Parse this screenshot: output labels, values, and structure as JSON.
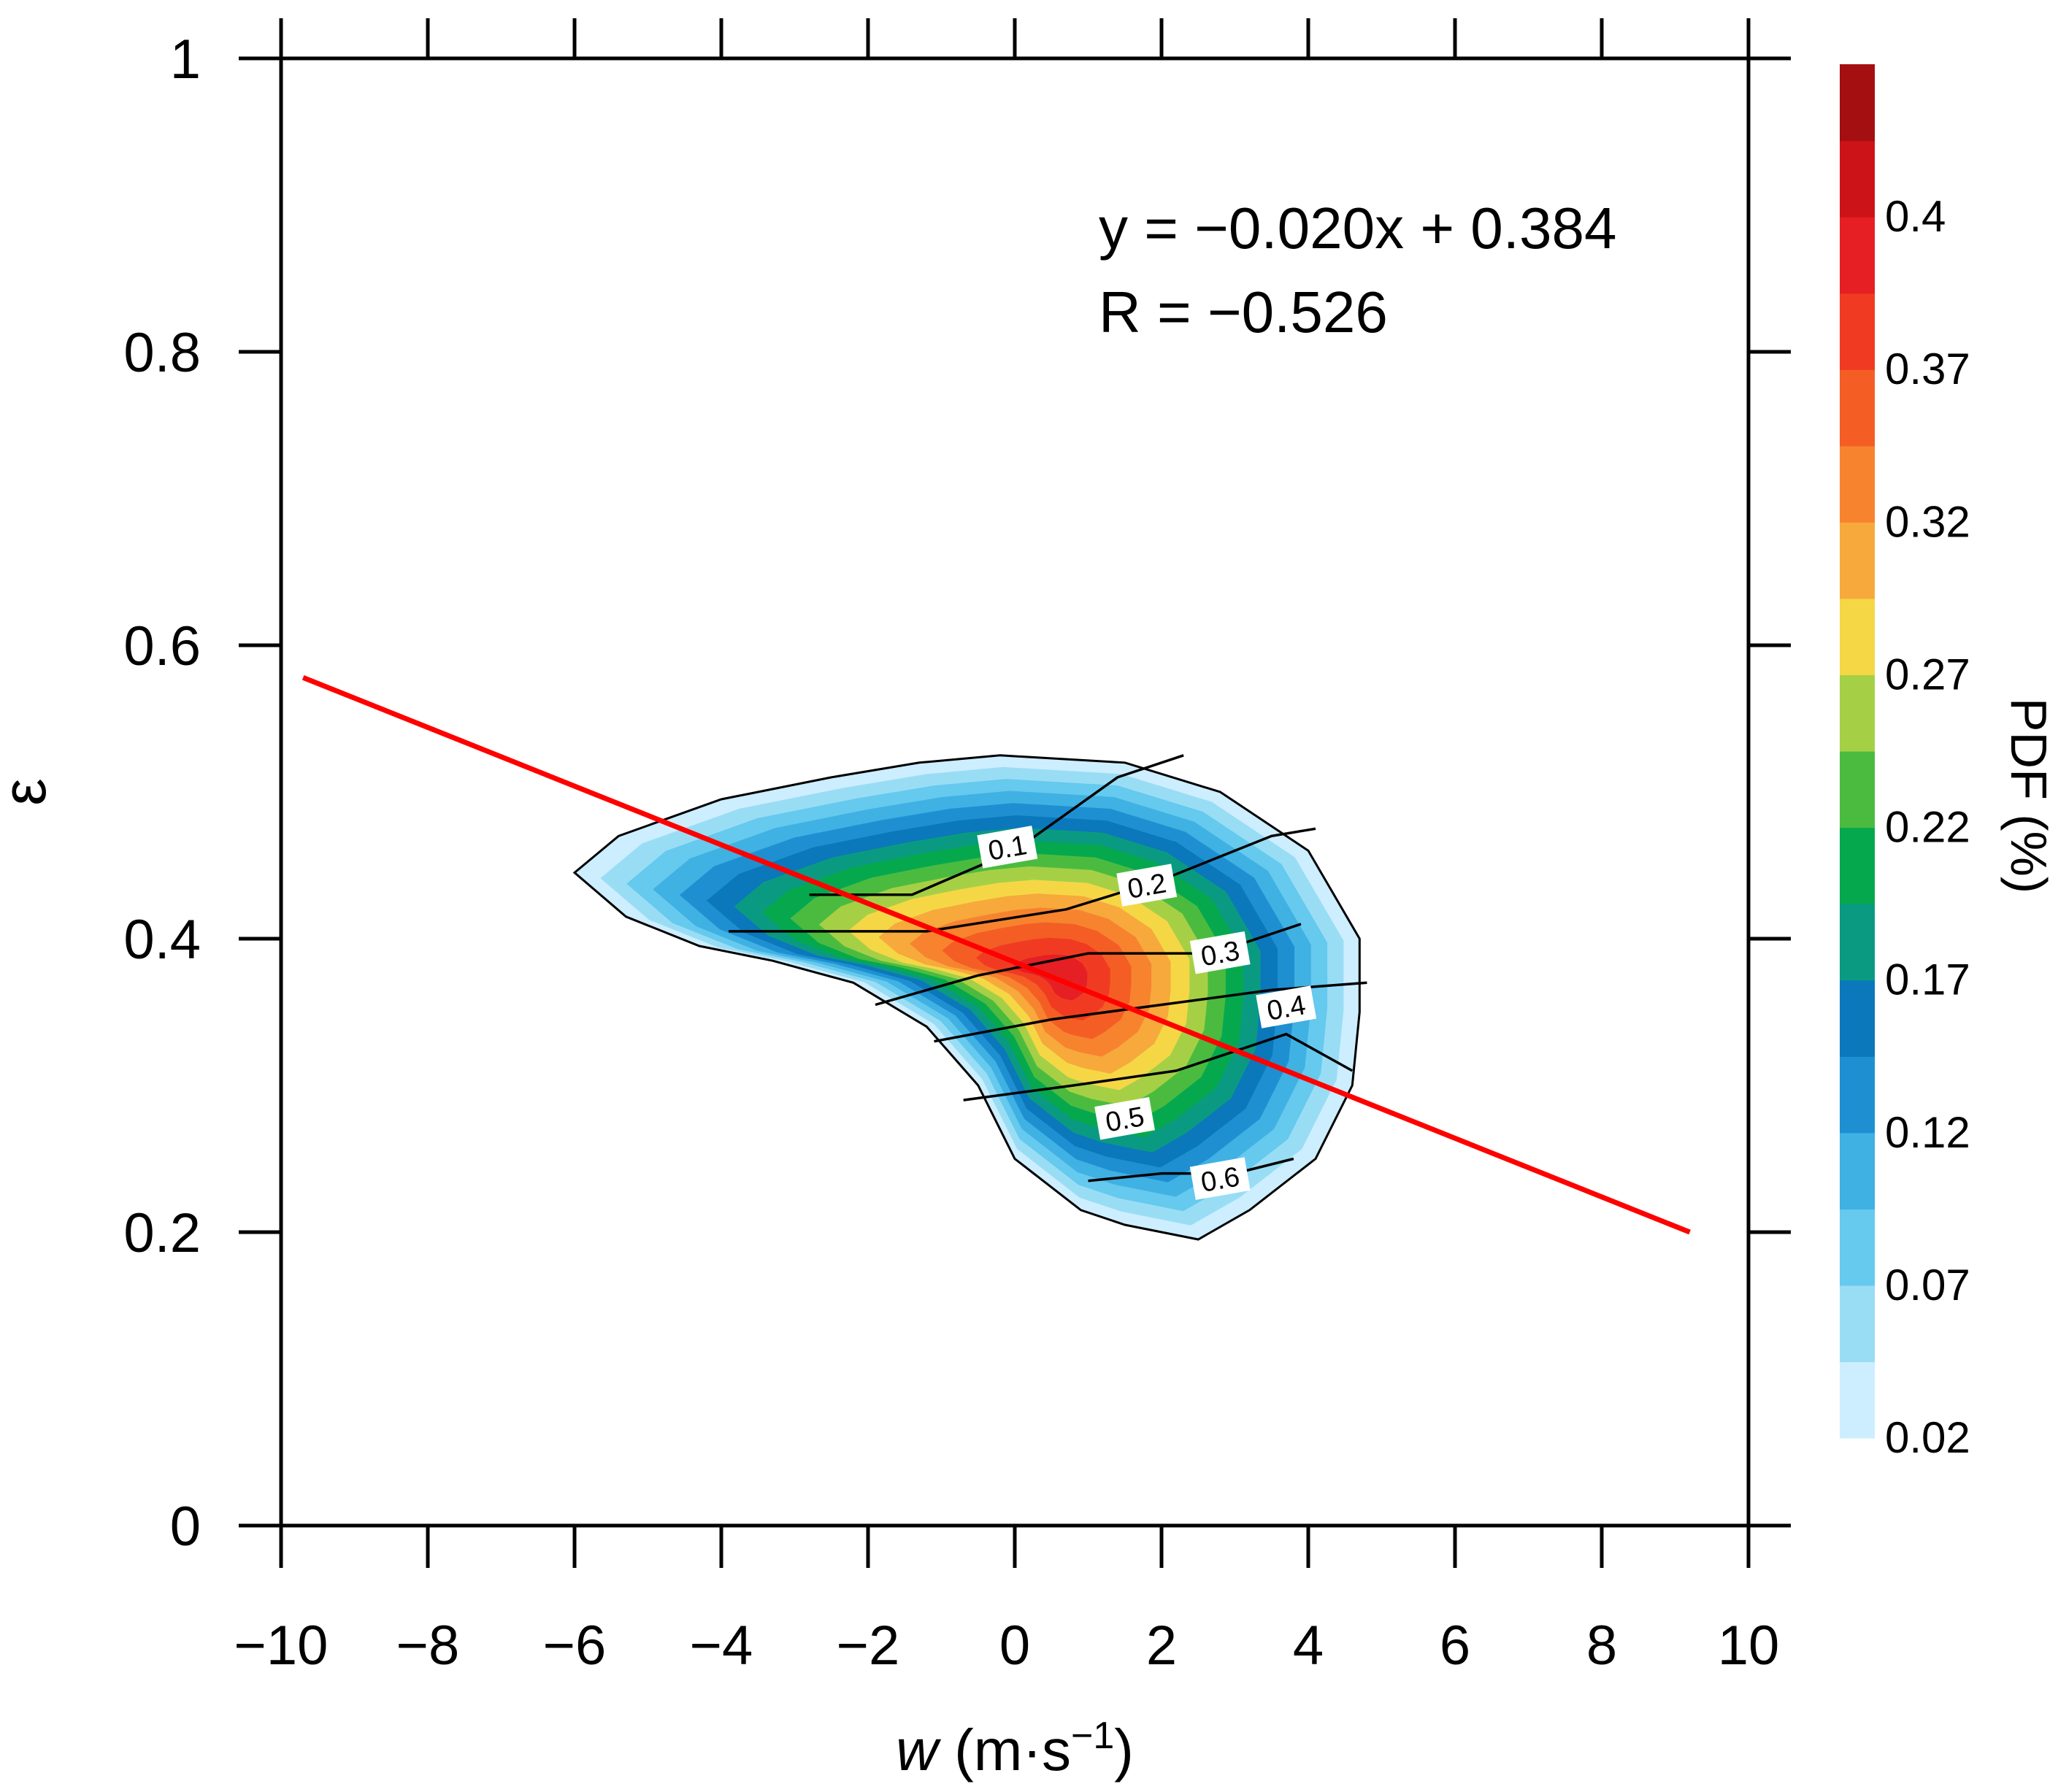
{
  "chart_data": {
    "type": "contour",
    "xlabel_italic": "w",
    "xlabel_rest": " (m·s",
    "xlabel_sup": "−1",
    "xlabel_close": ")",
    "ylabel": "ε",
    "xlim": [
      -10,
      10
    ],
    "ylim": [
      0,
      1
    ],
    "xticks": [
      -10,
      -8,
      -6,
      -4,
      -2,
      0,
      2,
      4,
      6,
      8,
      10
    ],
    "xtick_labels": [
      "−10",
      "−8",
      "−6",
      "−4",
      "−2",
      "0",
      "2",
      "4",
      "6",
      "8",
      "10"
    ],
    "yticks": [
      0,
      0.2,
      0.4,
      0.6,
      0.8,
      1
    ],
    "ytick_labels": [
      "0",
      "0.2",
      "0.4",
      "0.6",
      "0.8",
      "1"
    ],
    "regression": {
      "slope": -0.02,
      "intercept": 0.384,
      "x_start": -9.7,
      "x_end": 9.2,
      "equation_label": "y = −0.020x + 0.384",
      "r_label": "R = −0.526",
      "color": "#ff0000"
    },
    "pdf_field": {
      "description_units": "PDF (%)",
      "center": [
        0.6,
        0.375
      ],
      "peak_value": 0.35
    },
    "contour_lines": [
      {
        "label": "0.1",
        "points": [
          [
            -2.8,
            0.43
          ],
          [
            -1.4,
            0.43
          ],
          [
            0,
            0.46
          ],
          [
            1.4,
            0.51
          ],
          [
            2.3,
            0.525
          ]
        ],
        "label_at": [
          -0.1,
          0.462
        ]
      },
      {
        "label": "0.2",
        "points": [
          [
            -3.9,
            0.405
          ],
          [
            -1.2,
            0.405
          ],
          [
            0.7,
            0.42
          ],
          [
            2.0,
            0.44
          ],
          [
            3.5,
            0.47
          ],
          [
            4.1,
            0.475
          ]
        ],
        "label_at": [
          1.8,
          0.436
        ]
      },
      {
        "label": "0.3",
        "points": [
          [
            -1.9,
            0.355
          ],
          [
            -0.5,
            0.375
          ],
          [
            1.0,
            0.39
          ],
          [
            2.7,
            0.39
          ],
          [
            3.9,
            0.41
          ]
        ],
        "label_at": [
          2.8,
          0.39
        ]
      },
      {
        "label": "0.4",
        "points": [
          [
            -1.1,
            0.33
          ],
          [
            0.5,
            0.345
          ],
          [
            2.0,
            0.355
          ],
          [
            3.5,
            0.365
          ],
          [
            4.8,
            0.37
          ]
        ],
        "label_at": [
          3.7,
          0.353
        ]
      },
      {
        "label": "0.5",
        "points": [
          [
            -0.7,
            0.29
          ],
          [
            0.8,
            0.3
          ],
          [
            2.2,
            0.31
          ],
          [
            3.7,
            0.335
          ],
          [
            4.6,
            0.31
          ]
        ],
        "label_at": [
          1.5,
          0.277
        ]
      },
      {
        "label": "0.6",
        "points": [
          [
            1.0,
            0.235
          ],
          [
            2.0,
            0.24
          ],
          [
            3.0,
            0.24
          ],
          [
            3.8,
            0.25
          ]
        ],
        "label_at": [
          2.8,
          0.236
        ]
      }
    ],
    "boundary": [
      [
        -6.0,
        0.445
      ],
      [
        -5.4,
        0.47
      ],
      [
        -4.0,
        0.495
      ],
      [
        -2.5,
        0.51
      ],
      [
        -1.3,
        0.52
      ],
      [
        -0.2,
        0.525
      ],
      [
        1.5,
        0.52
      ],
      [
        2.8,
        0.5
      ],
      [
        4.0,
        0.46
      ],
      [
        4.7,
        0.4
      ],
      [
        4.7,
        0.35
      ],
      [
        4.6,
        0.3
      ],
      [
        4.1,
        0.25
      ],
      [
        3.2,
        0.215
      ],
      [
        2.5,
        0.195
      ],
      [
        1.5,
        0.205
      ],
      [
        0.9,
        0.215
      ],
      [
        0.0,
        0.25
      ],
      [
        -0.5,
        0.3
      ],
      [
        -1.2,
        0.34
      ],
      [
        -2.2,
        0.37
      ],
      [
        -3.3,
        0.385
      ],
      [
        -4.3,
        0.395
      ],
      [
        -5.3,
        0.415
      ],
      [
        -6.0,
        0.445
      ]
    ],
    "colorbar": {
      "label": "PDF (%)",
      "colors": [
        "#cceeff",
        "#99ddf5",
        "#66c9ee",
        "#3fb1e3",
        "#1e90d2",
        "#0a78bb",
        "#0a9a82",
        "#06a84e",
        "#4bbb3f",
        "#a5d046",
        "#f5d746",
        "#f7a93c",
        "#f7832f",
        "#f45e24",
        "#f03b22",
        "#e51f24",
        "#cc1418",
        "#a40f12"
      ],
      "tick_labels": [
        "0.02",
        "0.07",
        "0.12",
        "0.17",
        "0.22",
        "0.27",
        "0.32",
        "0.37",
        "0.4"
      ]
    }
  }
}
